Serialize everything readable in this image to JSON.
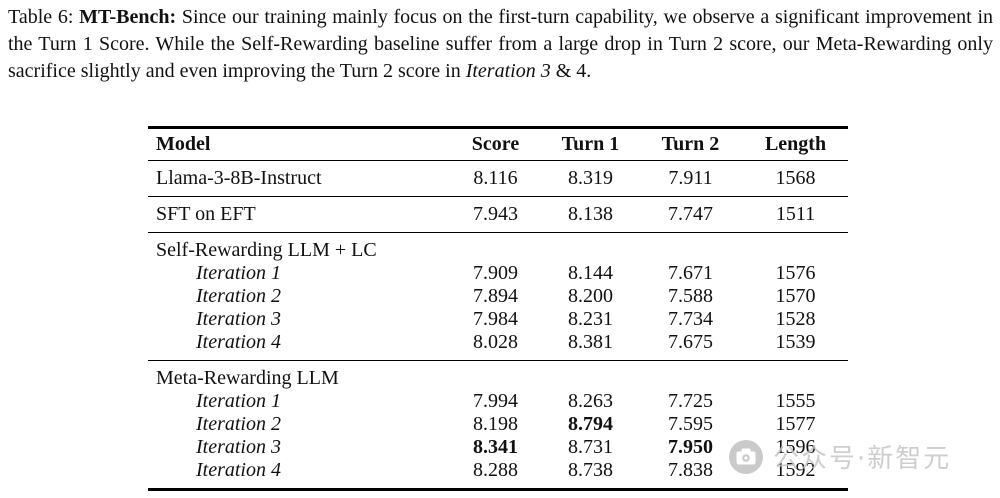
{
  "caption": {
    "segments": [
      {
        "text": "Table 6: ",
        "bold": false,
        "italic": false
      },
      {
        "text": "MT-Bench: ",
        "bold": true,
        "italic": false
      },
      {
        "text": "Since our training mainly focus on the first-turn capability, we observe a significant improvement in the Turn 1 Score. While the Self-Rewarding baseline suffer from a large drop in Turn 2 score, our Meta-Rewarding only sacrifice slightly and even improving the Turn 2 score in ",
        "bold": false,
        "italic": false
      },
      {
        "text": "Iteration 3",
        "bold": false,
        "italic": true
      },
      {
        "text": " & 4.",
        "bold": false,
        "italic": false
      }
    ]
  },
  "table": {
    "columns": [
      "Model",
      "Score",
      "Turn 1",
      "Turn 2",
      "Length"
    ],
    "sections": [
      {
        "rows": [
          {
            "model": "Llama-3-8B-Instruct",
            "indent": false,
            "italic": false,
            "values": [
              "8.116",
              "8.319",
              "7.911",
              "1568"
            ]
          }
        ]
      },
      {
        "rows": [
          {
            "model": "SFT on EFT",
            "indent": false,
            "italic": false,
            "values": [
              "7.943",
              "8.138",
              "7.747",
              "1511"
            ]
          }
        ]
      },
      {
        "group": "Self-Rewarding LLM + LC",
        "rows": [
          {
            "model": "Iteration 1",
            "indent": true,
            "italic": true,
            "values": [
              "7.909",
              "8.144",
              "7.671",
              "1576"
            ]
          },
          {
            "model": "Iteration 2",
            "indent": true,
            "italic": true,
            "values": [
              "7.894",
              "8.200",
              "7.588",
              "1570"
            ]
          },
          {
            "model": "Iteration 3",
            "indent": true,
            "italic": true,
            "values": [
              "7.984",
              "8.231",
              "7.734",
              "1528"
            ]
          },
          {
            "model": "Iteration 4",
            "indent": true,
            "italic": true,
            "values": [
              "8.028",
              "8.381",
              "7.675",
              "1539"
            ]
          }
        ]
      },
      {
        "group": "Meta-Rewarding LLM",
        "rows": [
          {
            "model": "Iteration 1",
            "indent": true,
            "italic": true,
            "values": [
              "7.994",
              "8.263",
              "7.725",
              "1555"
            ]
          },
          {
            "model": "Iteration 2",
            "indent": true,
            "italic": true,
            "values": [
              "8.198",
              "8.794",
              "7.595",
              "1577"
            ],
            "bold": [
              false,
              true,
              false,
              false
            ]
          },
          {
            "model": "Iteration 3",
            "indent": true,
            "italic": true,
            "values": [
              "8.341",
              "8.731",
              "7.950",
              "1596"
            ],
            "bold": [
              true,
              false,
              true,
              false
            ]
          },
          {
            "model": "Iteration 4",
            "indent": true,
            "italic": true,
            "values": [
              "8.288",
              "8.738",
              "7.838",
              "1592"
            ]
          }
        ]
      }
    ]
  },
  "watermark": {
    "text": "公众号·新智元",
    "icon": "camera-icon",
    "color": "#c2c2c2"
  }
}
